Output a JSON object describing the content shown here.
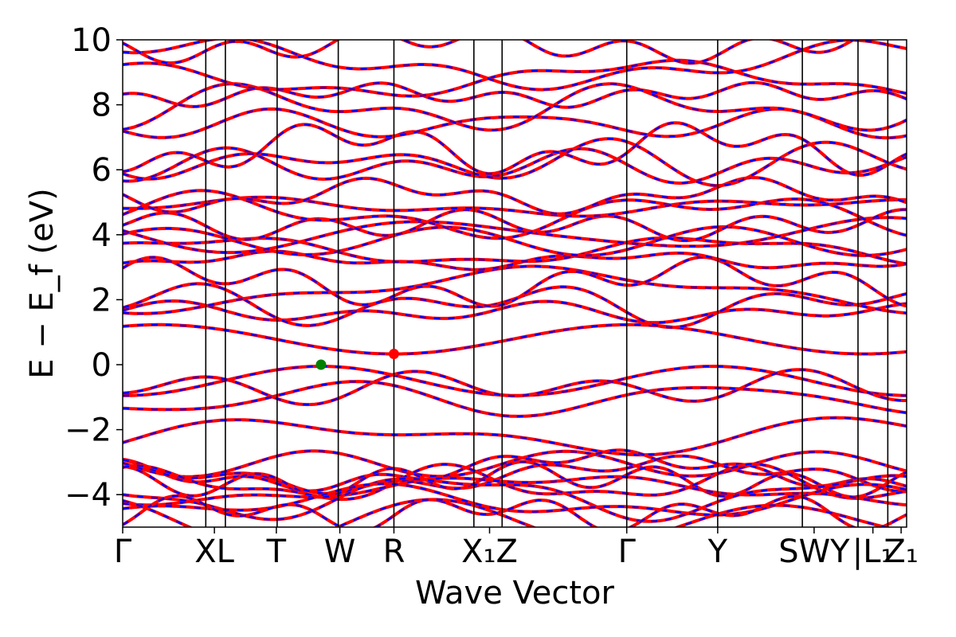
{
  "chart_data": {
    "type": "line",
    "xlabel": "Wave Vector",
    "ylabel": "E − E_f (eV)",
    "ylim": [
      -5,
      10
    ],
    "y_ticks": [
      10,
      8,
      6,
      4,
      2,
      0,
      -2,
      -4
    ],
    "y_tick_labels": [
      "10",
      "8",
      "6",
      "4",
      "2",
      "0",
      "−2",
      "−4"
    ],
    "x_ticks": [
      {
        "label": "Γ",
        "pos": 0.0
      },
      {
        "label": "XL",
        "pos": 0.117
      },
      {
        "label": "T",
        "pos": 0.196
      },
      {
        "label": "W",
        "pos": 0.277
      },
      {
        "label": "R",
        "pos": 0.346
      },
      {
        "label": "X₁Z",
        "pos": 0.468
      },
      {
        "label": "Γ",
        "pos": 0.643
      },
      {
        "label": "Y",
        "pos": 0.759
      },
      {
        "label": "SWY",
        "pos": 0.882
      },
      {
        "label": "|L₁",
        "pos": 0.957
      },
      {
        "label": "Z₁",
        "pos": 0.993
      }
    ],
    "high_symmetry_lines": [
      0.106,
      0.131,
      0.197,
      0.275,
      0.346,
      0.448,
      0.484,
      0.643,
      0.759,
      0.867,
      0.938,
      0.976
    ],
    "series": [
      {
        "style": "solid",
        "color": "#ff0000"
      },
      {
        "style": "dashed",
        "color": "#0000ff"
      }
    ],
    "markers": [
      {
        "label": "VBM",
        "x": 0.253,
        "y": 0.0,
        "color": "#008000"
      },
      {
        "label": "CBM",
        "x": 0.346,
        "y": 0.33,
        "color": "#ff0000"
      }
    ],
    "grid": false,
    "legend": "none"
  },
  "colors": {
    "conduction_valence_bands": "#ff0000",
    "overlay_bands": "#0000ff",
    "vbm_marker": "#008000",
    "cbm_marker": "#ff0000"
  }
}
